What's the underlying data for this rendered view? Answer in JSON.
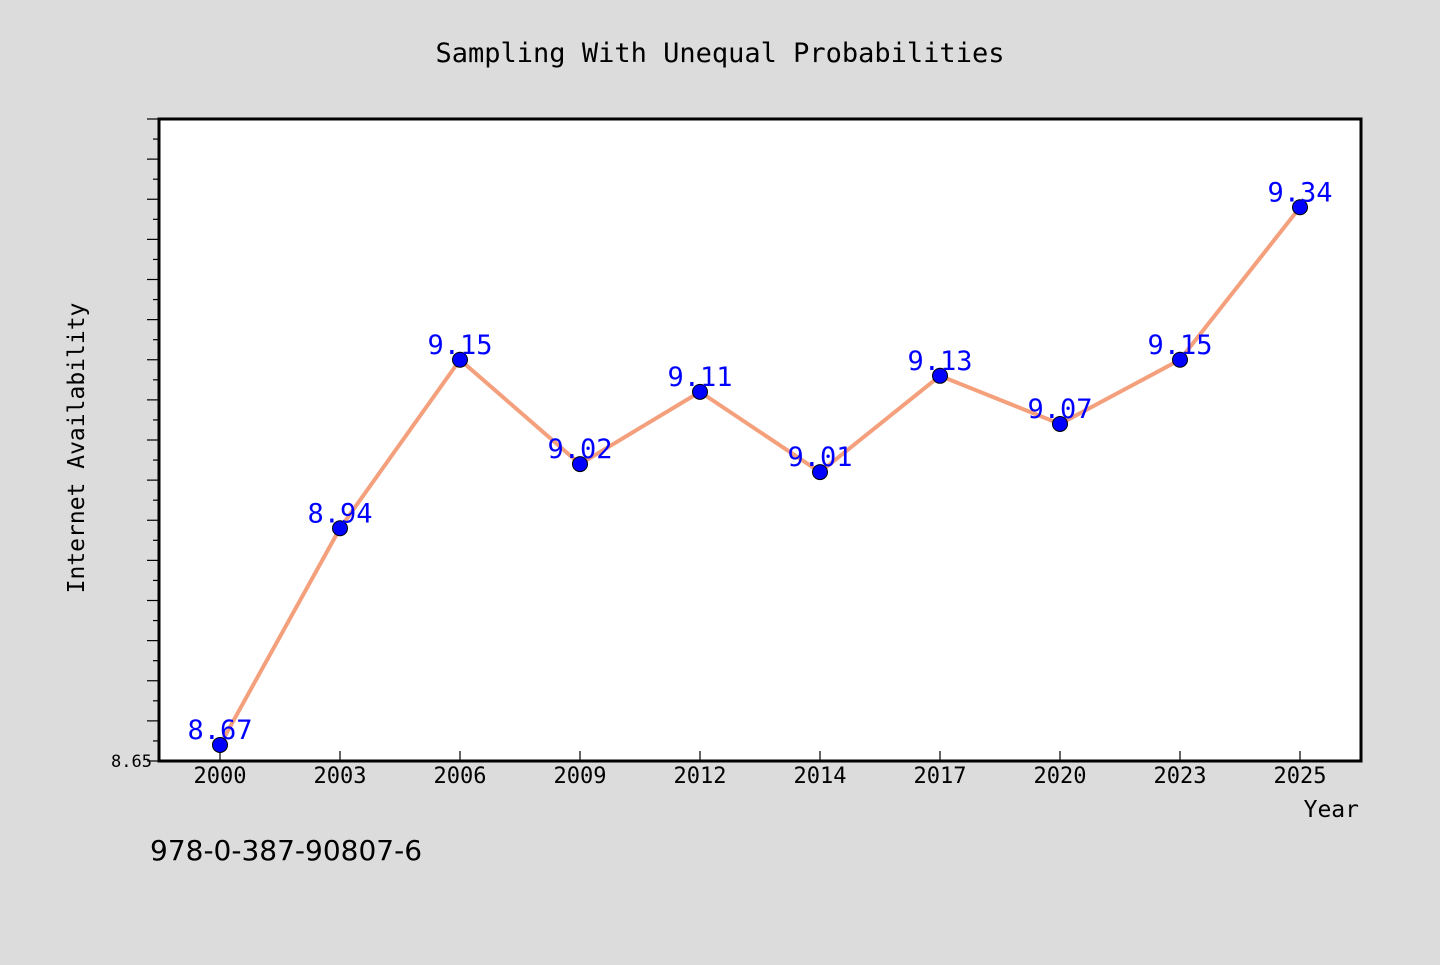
{
  "chart_data": {
    "type": "line",
    "title": "Sampling With Unequal Probabilities",
    "xlabel": "Year",
    "ylabel": "Internet Availability",
    "categories": [
      "2000",
      "2003",
      "2006",
      "2009",
      "2012",
      "2014",
      "2017",
      "2020",
      "2023",
      "2025"
    ],
    "series": [
      {
        "values": [
          8.67,
          8.94,
          9.15,
          9.02,
          9.11,
          9.01,
          9.13,
          9.07,
          9.15,
          9.34
        ]
      }
    ],
    "data_labels": [
      "8.67",
      "8.94",
      "9.15",
      "9.02",
      "9.11",
      "9.01",
      "9.13",
      "9.07",
      "9.15",
      "9.34"
    ],
    "ylim": [
      8.65,
      9.45
    ],
    "y_tick_labels": [
      "8.65"
    ],
    "grid": false,
    "legend": "none",
    "colors": {
      "line": "#f4a07c",
      "marker": "#0000ff",
      "label": "#0000ff",
      "plot_background": "#ffffff",
      "page_background": "#dcdcdc"
    }
  },
  "footer": {
    "isbn": "978-0-387-90807-6"
  }
}
